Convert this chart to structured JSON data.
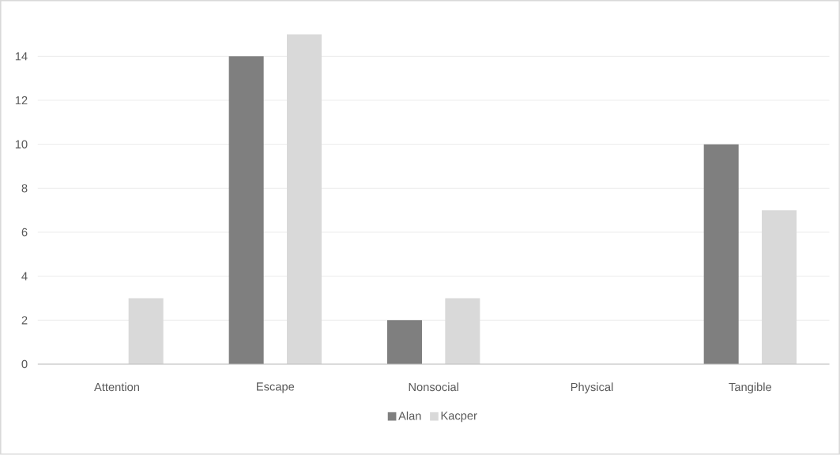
{
  "chart_data": {
    "type": "bar",
    "categories": [
      "Attention",
      "Escape",
      "Nonsocial",
      "Physical",
      "Tangible"
    ],
    "series": [
      {
        "name": "Alan",
        "color": "#7f7f7f",
        "values": [
          0,
          14,
          2,
          0,
          10
        ]
      },
      {
        "name": "Kacper",
        "color": "#d9d9d9",
        "values": [
          3,
          15,
          3,
          0,
          7
        ]
      }
    ],
    "ylim": [
      0,
      15
    ],
    "yticks": [
      0,
      2,
      4,
      6,
      8,
      10,
      12,
      14
    ],
    "grid": "y",
    "legend": "bottom"
  }
}
